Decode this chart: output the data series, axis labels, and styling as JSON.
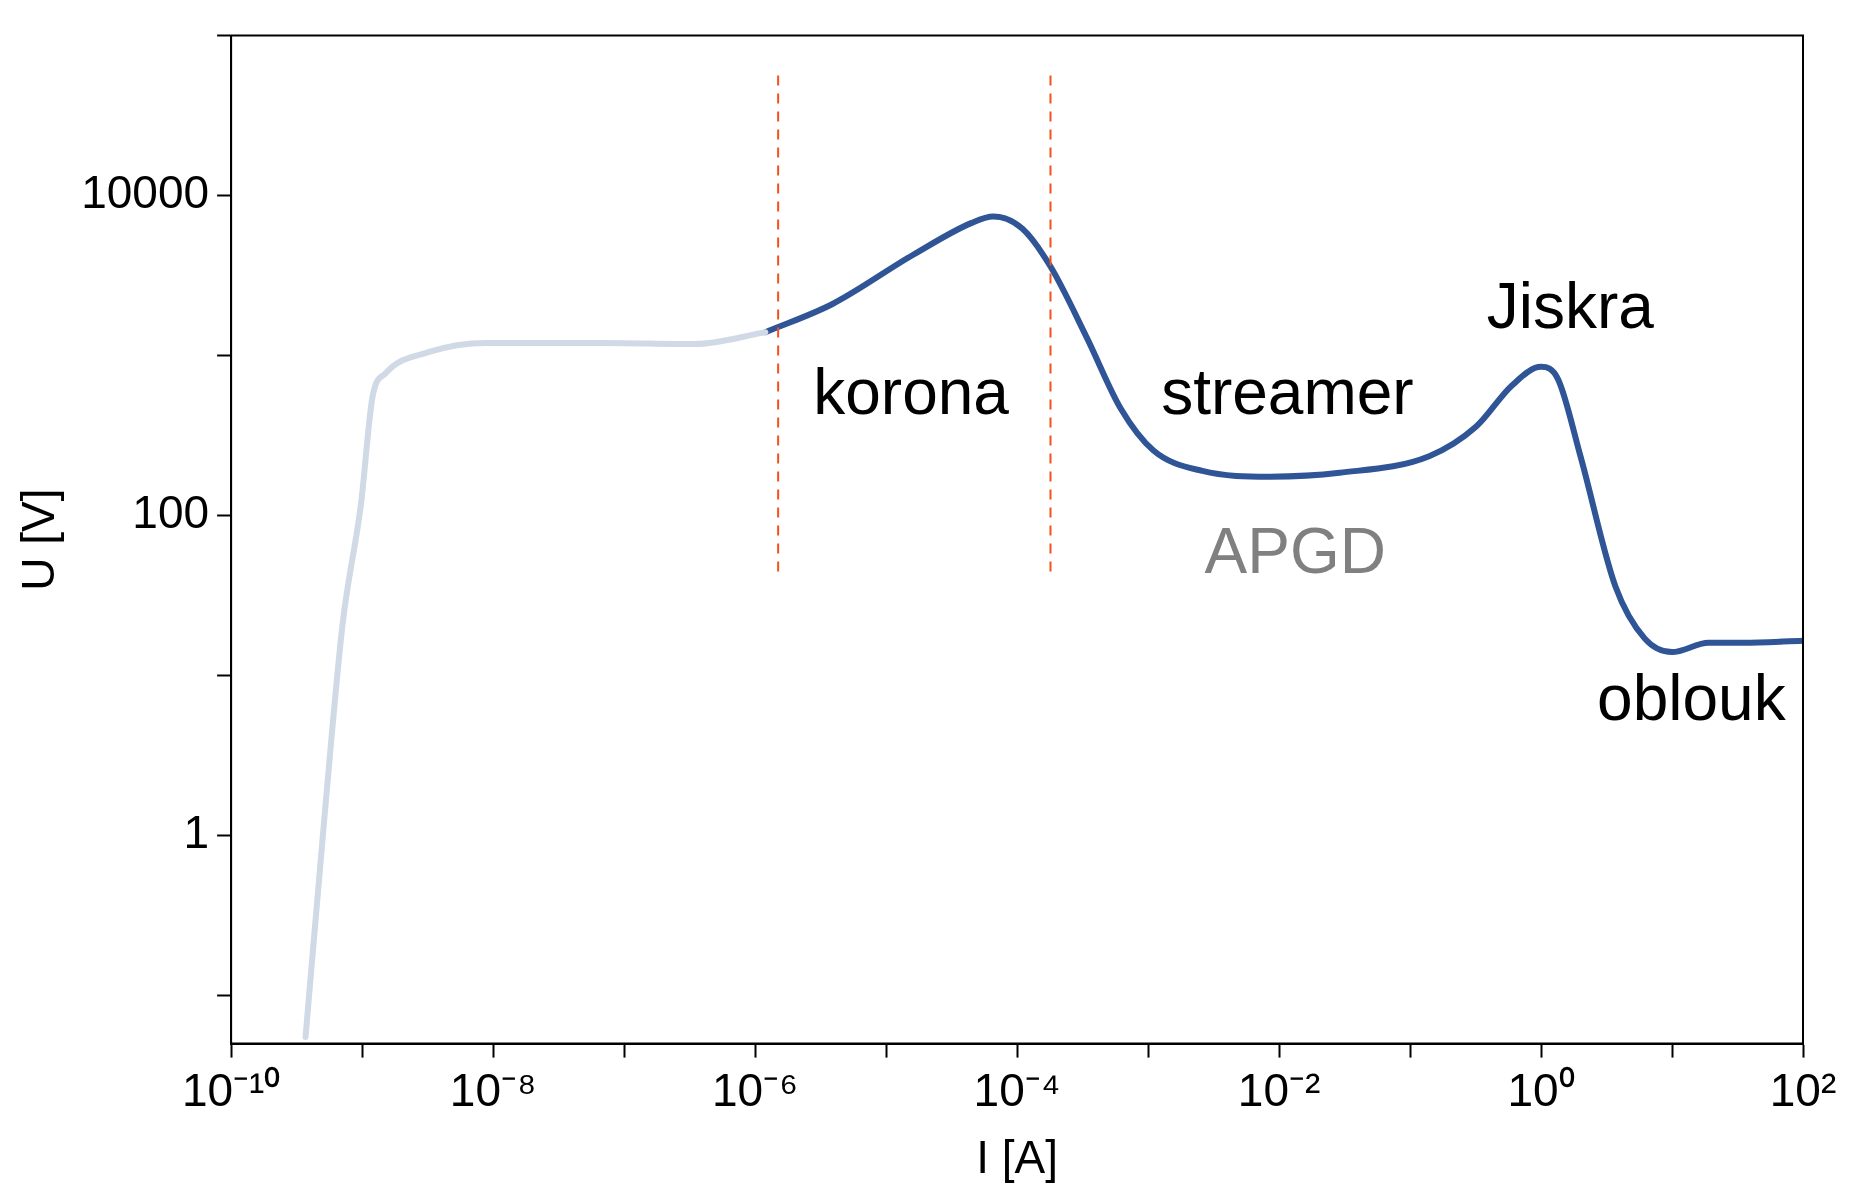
{
  "chart_data": {
    "type": "line",
    "xlabel": "I [A]",
    "ylabel": "U [V]",
    "log": "xy",
    "grid": false,
    "legend": false,
    "marker": "none",
    "line_style": "solid",
    "xlim": [
      1e-10,
      100
    ],
    "xticks": [
      {
        "value": 1e-10,
        "label": "10⁻¹⁰"
      },
      {
        "value": 1e-09,
        "label": null
      },
      {
        "value": 1e-08,
        "label": "10⁻⁸"
      },
      {
        "value": 1e-07,
        "label": null
      },
      {
        "value": 1e-06,
        "label": "10⁻⁶"
      },
      {
        "value": 1e-05,
        "label": null
      },
      {
        "value": 0.0001,
        "label": "10⁻⁴"
      },
      {
        "value": 0.001,
        "label": null
      },
      {
        "value": 0.01,
        "label": "10⁻²"
      },
      {
        "value": 0.1,
        "label": null
      },
      {
        "value": 1,
        "label": "10⁰"
      },
      {
        "value": 10,
        "label": null
      },
      {
        "value": 100,
        "label": "10²"
      }
    ],
    "ylim": [
      0.05,
      100000
    ],
    "yticks": [
      {
        "value": 0.1,
        "label": null
      },
      1,
      {
        "value": 10,
        "label": null
      },
      100,
      {
        "value": 1000,
        "label": null
      },
      10000,
      {
        "value": 100000,
        "label": null
      }
    ],
    "series": [
      {
        "color": "#d0d9e6",
        "x": [
          3.7e-10,
          5.2e-10,
          7.1e-10,
          9.8e-10,
          1.2e-09,
          1.5e-09,
          3.2e-09,
          8.9e-09,
          6.8e-08,
          3.5e-07,
          1.2e-06
        ],
        "values": [
          0.055,
          1.4,
          21,
          118,
          550,
          770,
          1050,
          1200,
          1200,
          1180,
          1400
        ]
      },
      {
        "color": "#2f5597",
        "x": [
          1.2e-06,
          3.9e-06,
          1.6e-05,
          4.5e-05,
          6.6e-05,
          0.00011,
          0.00018,
          0.00034,
          0.00062,
          0.0011,
          0.0026,
          0.0085,
          0.029,
          0.14,
          0.32,
          0.6,
          1.0,
          1.35,
          2.0,
          3.7,
          6.2,
          10,
          19,
          35,
          100
        ],
        "values": [
          1400,
          2100,
          4250,
          6750,
          7400,
          6200,
          3600,
          1300,
          465,
          255,
          190,
          175,
          185,
          235,
          360,
          650,
          850,
          710,
          235,
          36,
          17,
          14,
          16,
          16,
          16.5
        ]
      }
    ],
    "ref_lines": [
      {
        "axis": "x",
        "value": 1.5e-06,
        "color": "#f4511e",
        "line_style": "dashed"
      },
      {
        "axis": "x",
        "value": 0.00018,
        "color": "#f4511e",
        "line_style": "dashed"
      }
    ],
    "annotations": [
      "korona",
      "streamer",
      "Jiskra",
      "APGD",
      "oblouk"
    ]
  }
}
